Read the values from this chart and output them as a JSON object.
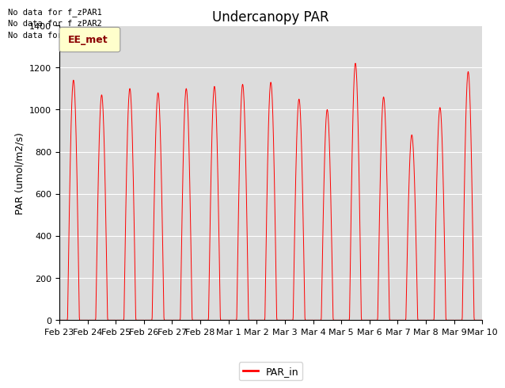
{
  "title": "Undercanopy PAR",
  "ylabel": "PAR (umol/m2/s)",
  "ylim": [
    0,
    1400
  ],
  "yticks": [
    0,
    200,
    400,
    600,
    800,
    1000,
    1200,
    1400
  ],
  "legend_label": "PAR_in",
  "no_data_texts": [
    "No data for f_zPAR1",
    "No data for f_zPAR2",
    "No data for f_zPAR3"
  ],
  "ee_met_label": "EE_met",
  "line_color": "#FF0000",
  "background_color": "#DCDCDC",
  "xtick_labels": [
    "Feb 23",
    "Feb 24",
    "Feb 25",
    "Feb 26",
    "Feb 27",
    "Feb 28",
    "Mar 1",
    "Mar 2",
    "Mar 3",
    "Mar 4",
    "Mar 5",
    "Mar 6",
    "Mar 7",
    "Mar 8",
    "Mar 9",
    "Mar 10"
  ],
  "day_peaks": [
    1140,
    1070,
    1100,
    1080,
    1100,
    1110,
    1120,
    1130,
    1050,
    1000,
    1220,
    1060,
    880,
    1010,
    1180,
    0
  ],
  "title_fontsize": 12,
  "label_fontsize": 9,
  "tick_fontsize": 8
}
